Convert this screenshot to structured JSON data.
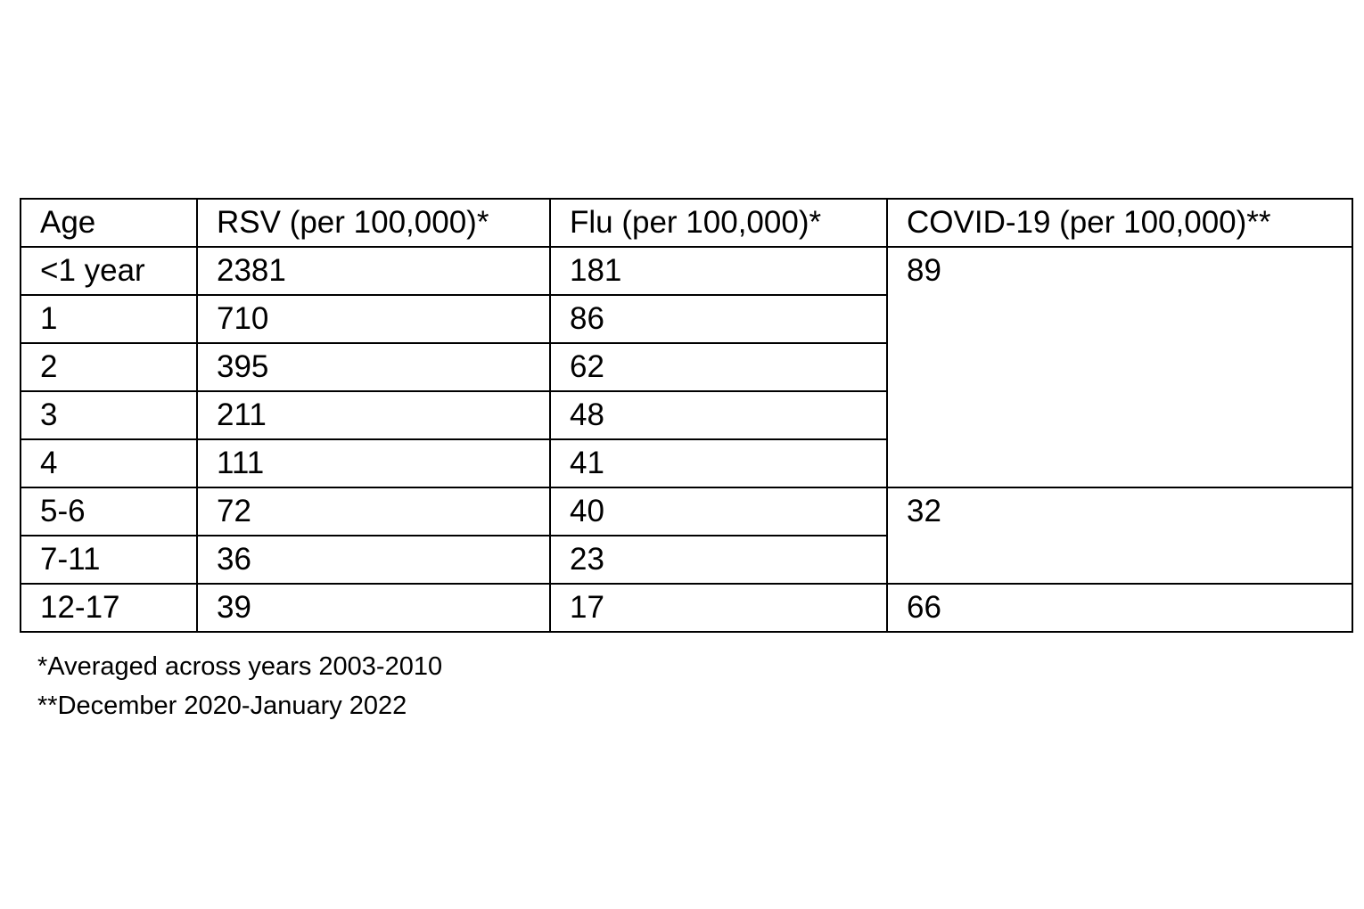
{
  "table": {
    "headers": [
      "Age",
      "RSV (per 100,000)*",
      "Flu (per 100,000)*",
      "COVID-19 (per 100,000)**"
    ],
    "rows": [
      {
        "age": "<1 year",
        "rsv": "2381",
        "flu": "181"
      },
      {
        "age": "1",
        "rsv": "710",
        "flu": "86"
      },
      {
        "age": "2",
        "rsv": "395",
        "flu": "62"
      },
      {
        "age": "3",
        "rsv": "211",
        "flu": "48"
      },
      {
        "age": "4",
        "rsv": "111",
        "flu": "41"
      },
      {
        "age": "5-6",
        "rsv": "72",
        "flu": "40"
      },
      {
        "age": "7-11",
        "rsv": "36",
        "flu": "23"
      },
      {
        "age": "12-17",
        "rsv": "39",
        "flu": "17"
      }
    ],
    "covid_groups": [
      {
        "value": "89",
        "rowspan": 5
      },
      {
        "value": "32",
        "rowspan": 2
      },
      {
        "value": "66",
        "rowspan": 1
      }
    ]
  },
  "footnotes": {
    "single_star": "*Averaged across years 2003-2010",
    "double_star": "**December 2020-January 2022"
  }
}
